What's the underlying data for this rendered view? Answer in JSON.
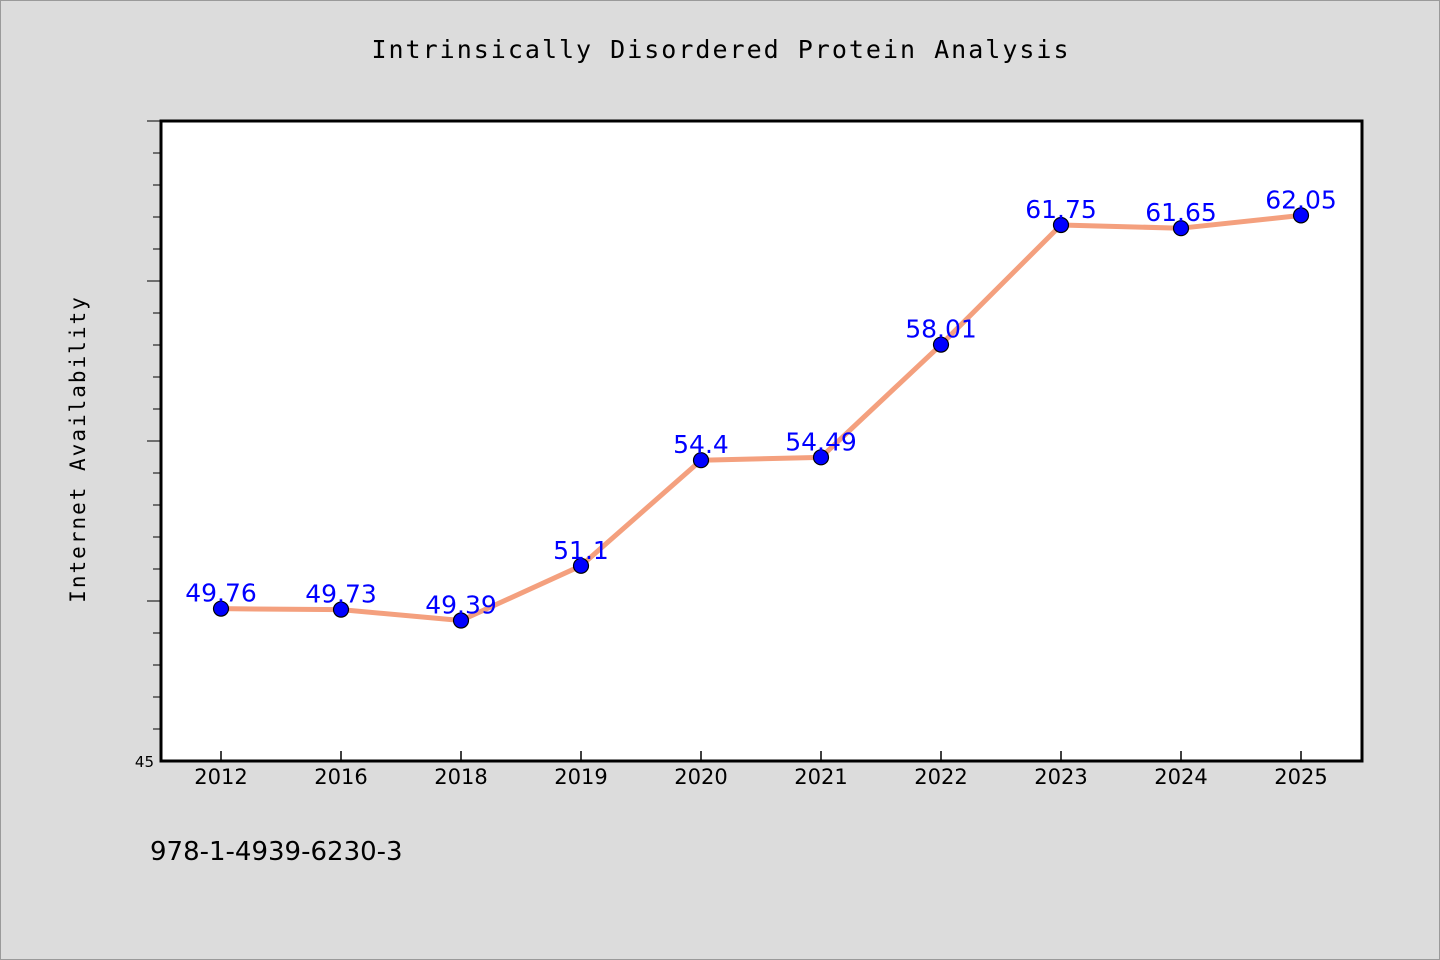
{
  "chart_data": {
    "type": "line",
    "title": "Intrinsically Disordered Protein Analysis",
    "xlabel": "",
    "ylabel": "Internet Availability",
    "categories": [
      "2012",
      "2016",
      "2018",
      "2019",
      "2020",
      "2021",
      "2022",
      "2023",
      "2024",
      "2025"
    ],
    "series": [
      {
        "values": [
          49.76,
          49.73,
          49.39,
          51.1,
          54.4,
          54.49,
          58.01,
          61.75,
          61.65,
          62.05
        ]
      }
    ],
    "data_labels": [
      "49.76",
      "49.73",
      "49.39",
      "51.1",
      "54.4",
      "54.49",
      "58.01",
      "61.75",
      "61.65",
      "62.05"
    ],
    "ylim": [
      45,
      65
    ],
    "y_tick_labels": [
      "45"
    ],
    "grid": false,
    "line_color": "#f4a07e",
    "marker_color": "#0000ff",
    "label_color": "#0000ff"
  },
  "footnote": "978-1-4939-6230-3"
}
